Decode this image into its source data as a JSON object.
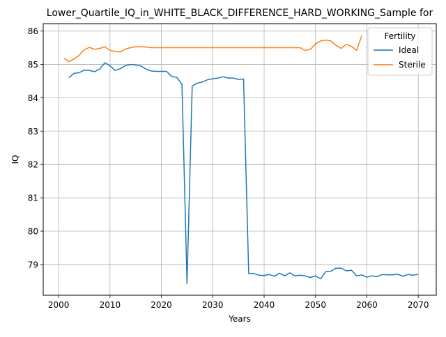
{
  "chart_data": {
    "type": "line",
    "title": "Lower_Quartile_IQ_in_WHITE_BLACK_DIFFERENCE_HARD_WORKING_Sample for",
    "xlabel": "Years",
    "ylabel": "IQ",
    "xlim": [
      1997,
      2073.5
    ],
    "ylim": [
      78.08,
      86.22
    ],
    "xticks": [
      2000,
      2010,
      2020,
      2030,
      2040,
      2050,
      2060,
      2070
    ],
    "yticks": [
      79,
      80,
      81,
      82,
      83,
      84,
      85,
      86
    ],
    "grid": true,
    "legend": {
      "title": "Fertility",
      "placement": "top-right"
    },
    "series": [
      {
        "name": "Ideal",
        "color": "#1f77b4",
        "x": [
          2002,
          2003,
          2004,
          2005,
          2006,
          2007,
          2008,
          2009,
          2010,
          2011,
          2012,
          2013,
          2014,
          2015,
          2016,
          2017,
          2018,
          2019,
          2020,
          2021,
          2022,
          2023,
          2024,
          2025,
          2026,
          2027,
          2028,
          2029,
          2030,
          2031,
          2032,
          2033,
          2034,
          2035,
          2036,
          2037,
          2038,
          2039,
          2040,
          2041,
          2042,
          2043,
          2044,
          2045,
          2046,
          2047,
          2048,
          2049,
          2050,
          2051,
          2052,
          2053,
          2054,
          2055,
          2056,
          2057,
          2058,
          2059,
          2060,
          2061,
          2062,
          2063,
          2064,
          2065,
          2066,
          2067,
          2068,
          2069,
          2070
        ],
        "values": [
          84.6,
          84.73,
          84.75,
          84.83,
          84.82,
          84.78,
          84.86,
          85.05,
          84.96,
          84.82,
          84.87,
          84.96,
          85.0,
          84.98,
          84.95,
          84.86,
          84.8,
          84.79,
          84.79,
          84.79,
          84.64,
          84.61,
          84.4,
          78.43,
          84.35,
          84.44,
          84.47,
          84.54,
          84.57,
          84.59,
          84.63,
          84.59,
          84.59,
          84.55,
          84.56,
          78.73,
          78.73,
          78.68,
          78.67,
          78.7,
          78.65,
          78.74,
          78.66,
          78.75,
          78.66,
          78.68,
          78.66,
          78.61,
          78.66,
          78.57,
          78.79,
          78.8,
          78.89,
          78.89,
          78.81,
          78.83,
          78.66,
          78.69,
          78.62,
          78.66,
          78.64,
          78.7,
          78.69,
          78.69,
          78.71,
          78.65,
          78.7,
          78.68,
          78.71
        ]
      },
      {
        "name": "Sterile",
        "color": "#ff7f0e",
        "x": [
          2001,
          2002,
          2003,
          2004,
          2005,
          2006,
          2007,
          2008,
          2009,
          2010,
          2011,
          2012,
          2013,
          2014,
          2015,
          2016,
          2017,
          2018,
          2019,
          2020,
          2021,
          2022,
          2023,
          2024,
          2025,
          2026,
          2027,
          2028,
          2029,
          2030,
          2031,
          2032,
          2033,
          2034,
          2035,
          2036,
          2037,
          2038,
          2039,
          2040,
          2041,
          2042,
          2043,
          2044,
          2045,
          2046,
          2047,
          2048,
          2049,
          2050,
          2051,
          2052,
          2053,
          2054,
          2055,
          2056,
          2057,
          2058,
          2059
        ],
        "values": [
          85.19,
          85.08,
          85.16,
          85.27,
          85.44,
          85.51,
          85.45,
          85.48,
          85.53,
          85.42,
          85.39,
          85.37,
          85.46,
          85.5,
          85.53,
          85.53,
          85.52,
          85.5,
          85.5,
          85.5,
          85.5,
          85.5,
          85.5,
          85.5,
          85.5,
          85.5,
          85.5,
          85.5,
          85.5,
          85.5,
          85.5,
          85.5,
          85.5,
          85.5,
          85.5,
          85.5,
          85.5,
          85.5,
          85.5,
          85.5,
          85.5,
          85.5,
          85.5,
          85.5,
          85.5,
          85.5,
          85.5,
          85.42,
          85.45,
          85.61,
          85.7,
          85.73,
          85.7,
          85.57,
          85.48,
          85.6,
          85.54,
          85.42,
          85.86
        ]
      }
    ]
  }
}
